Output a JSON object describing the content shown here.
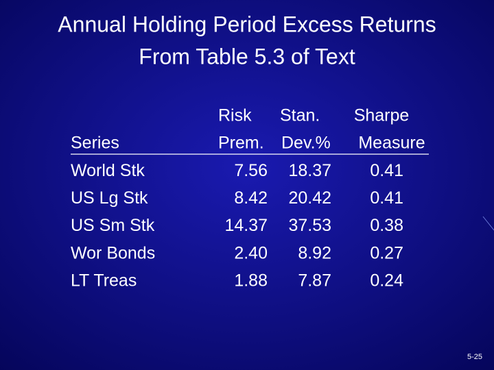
{
  "title": [
    "Annual Holding Period Excess Returns",
    "From Table 5.3 of Text"
  ],
  "table": {
    "columns": [
      [
        "Series"
      ],
      [
        "Risk",
        "Prem."
      ],
      [
        "Stan.",
        "Dev.%"
      ],
      [
        "Sharpe",
        "Measure"
      ]
    ],
    "rows": [
      [
        "World Stk",
        "7.56",
        "18.37",
        "0.41"
      ],
      [
        "US Lg Stk",
        "8.42",
        "20.42",
        "0.41"
      ],
      [
        "US Sm Stk",
        "14.37",
        "37.53",
        "0.38"
      ],
      [
        "Wor Bonds",
        "2.40",
        "8.92",
        "0.27"
      ],
      [
        "LT Treas",
        "1.88",
        "7.87",
        "0.24"
      ]
    ]
  },
  "footer": "5-25"
}
